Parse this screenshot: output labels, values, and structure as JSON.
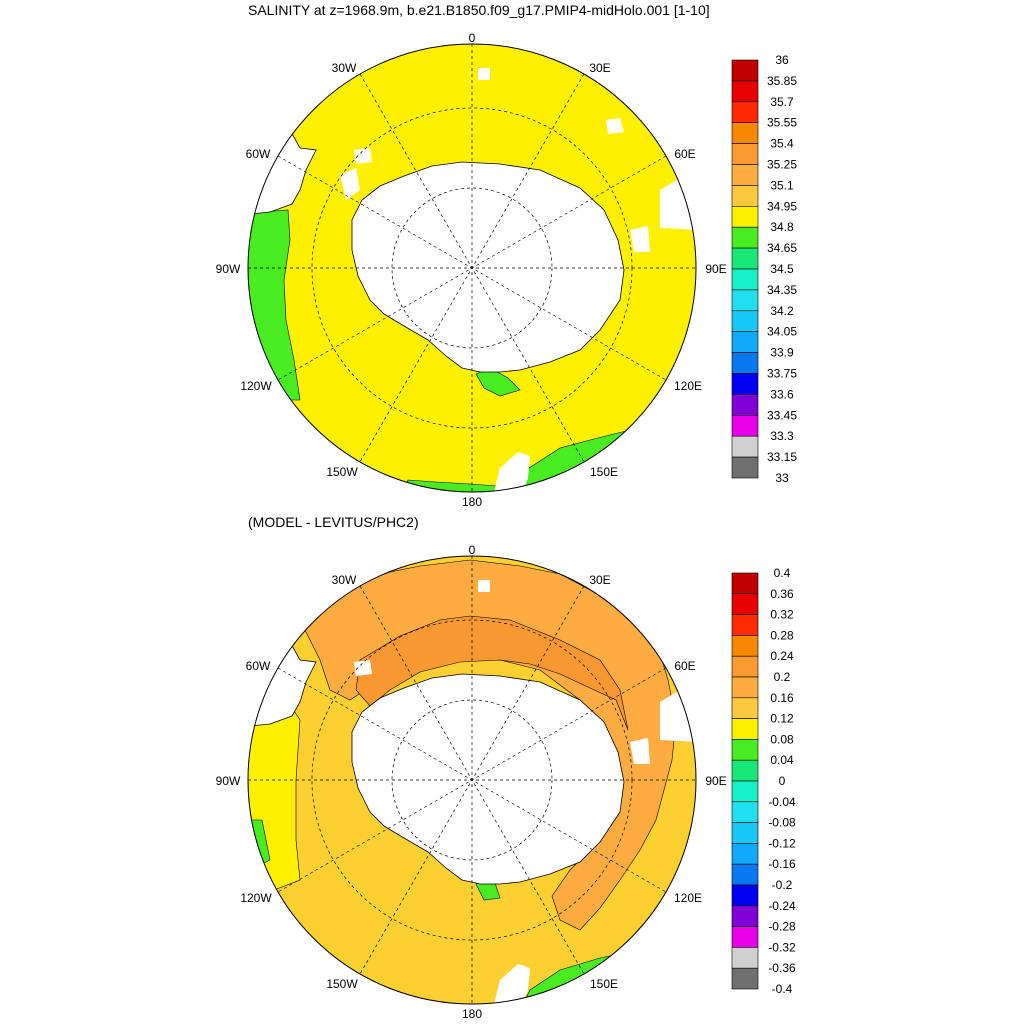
{
  "top_panel": {
    "title": "SALINITY at z=1968.9m, b.e21.B1850.f09_g17.PMIP4-midHolo.001 [1-10]",
    "lon_labels": [
      "0",
      "30E",
      "60E",
      "90E",
      "120E",
      "150E",
      "180",
      "150W",
      "120W",
      "90W",
      "60W",
      "30W"
    ],
    "colorbar": {
      "levels": [
        "36",
        "35.85",
        "35.7",
        "35.55",
        "35.4",
        "35.25",
        "35.1",
        "34.95",
        "34.8",
        "34.65",
        "34.5",
        "34.35",
        "34.2",
        "34.05",
        "33.9",
        "33.75",
        "33.6",
        "33.45",
        "33.3",
        "33.15",
        "33"
      ],
      "colors": [
        "#c00000",
        "#e80000",
        "#ff2a00",
        "#f88800",
        "#fa9a30",
        "#fcac40",
        "#fcc840",
        "#fef000",
        "#48ec20",
        "#18e878",
        "#18f0c8",
        "#20e0f0",
        "#18c8f8",
        "#10a8f8",
        "#0878f0",
        "#0000f0",
        "#8000d8",
        "#e800e8",
        "#d0d0d0",
        "#707070"
      ]
    },
    "land_color": "#ffffff",
    "field_colors": {
      "main": "#fef000",
      "fringe": "#48ec20"
    }
  },
  "bottom_panel": {
    "title": "(MODEL - LEVITUS/PHC2)",
    "lon_labels": [
      "0",
      "30E",
      "60E",
      "90E",
      "120E",
      "150E",
      "180",
      "150W",
      "120W",
      "90W",
      "60W",
      "30W"
    ],
    "colorbar": {
      "levels": [
        "0.4",
        "0.36",
        "0.32",
        "0.28",
        "0.24",
        "0.2",
        "0.16",
        "0.12",
        "0.08",
        "0.04",
        "0",
        "-0.04",
        "-0.08",
        "-0.12",
        "-0.16",
        "-0.2",
        "-0.24",
        "-0.28",
        "-0.32",
        "-0.36",
        "-0.4"
      ],
      "colors": [
        "#c00000",
        "#e80000",
        "#ff2a00",
        "#f88800",
        "#fa9a30",
        "#fcac40",
        "#fcc840",
        "#fef000",
        "#48ec20",
        "#18e878",
        "#18f0c8",
        "#20e0f0",
        "#18c8f8",
        "#10a8f8",
        "#0878f0",
        "#0000f0",
        "#8000d8",
        "#e800e8",
        "#d0d0d0",
        "#707070"
      ]
    },
    "field_colors": {
      "outer": "#fcd030",
      "mid": "#fcac40",
      "inner": "#f89830",
      "fringe": "#48ec20"
    }
  }
}
